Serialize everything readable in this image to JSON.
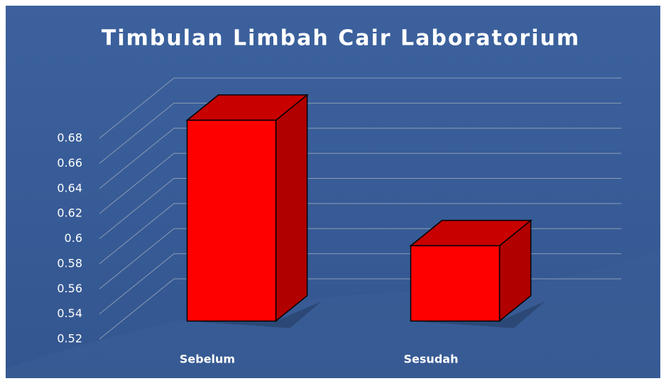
{
  "chart_data": {
    "type": "bar3d",
    "title": "Timbulan Limbah Cair Laboratorium",
    "categories": [
      "Sebelum",
      "Sesudah"
    ],
    "values": [
      0.68,
      0.58
    ],
    "color": "#ff0000",
    "ylim": [
      0.52,
      0.68
    ],
    "yticks": [
      0.52,
      0.54,
      0.56,
      0.58,
      0.6,
      0.62,
      0.64,
      0.66,
      0.68
    ],
    "grid": true
  }
}
